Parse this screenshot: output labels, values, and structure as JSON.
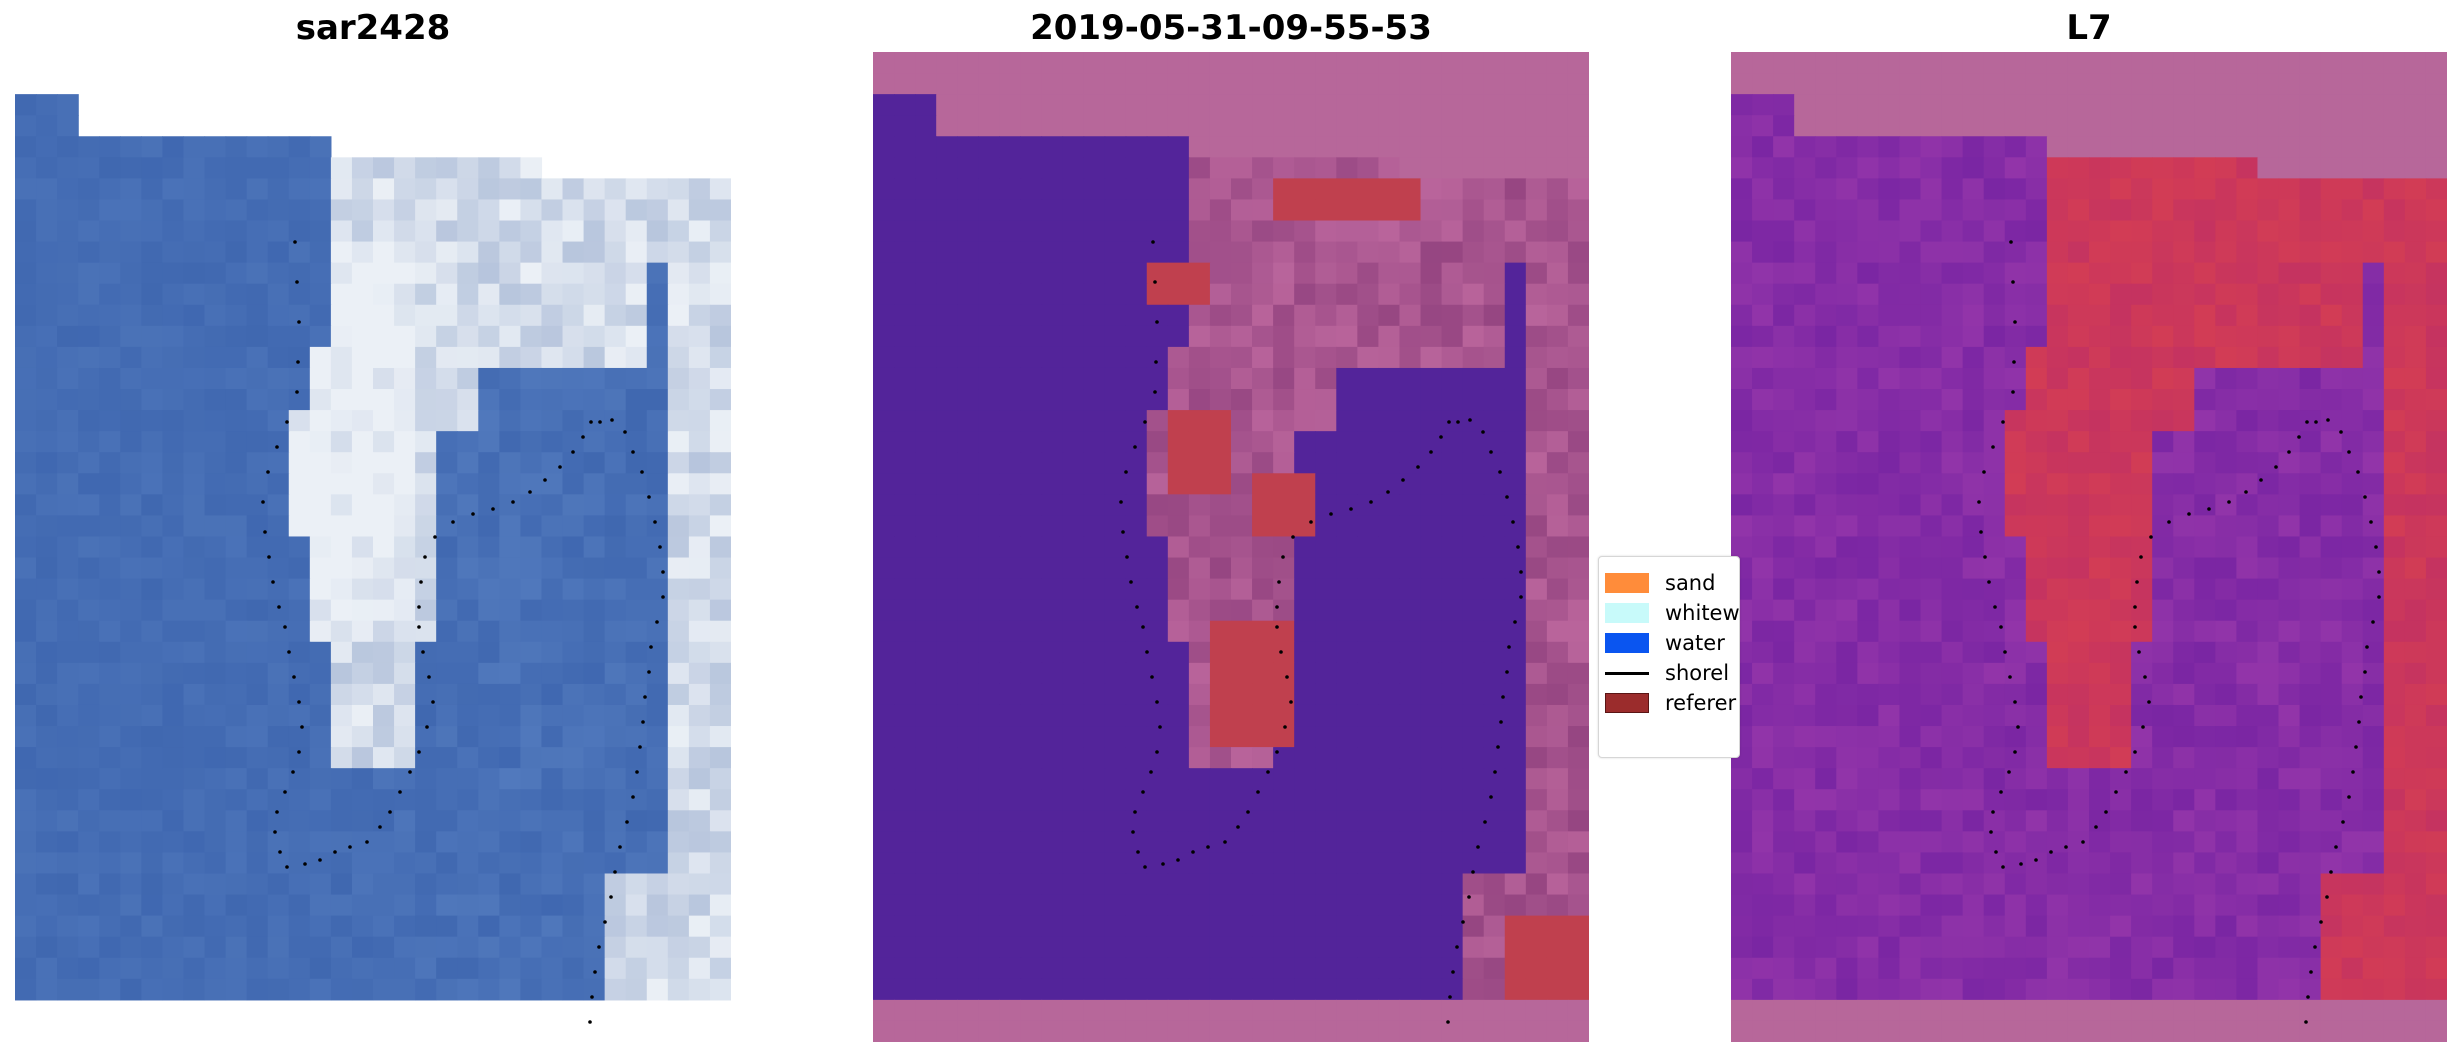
{
  "panels": [
    {
      "title": "sar2428"
    },
    {
      "title": "2019-05-31-09-55-53"
    },
    {
      "title": "L7"
    }
  ],
  "legend": {
    "items": [
      {
        "label": "sand",
        "color": "#ff8c3a",
        "kind": "patch"
      },
      {
        "label": "whitew",
        "color": "#c8fafa",
        "kind": "patch"
      },
      {
        "label": "water",
        "color": "#0a55f0",
        "kind": "patch"
      },
      {
        "label": "shorel",
        "color": "#000000",
        "kind": "line"
      },
      {
        "label": "referer",
        "color": "#9b2c2c",
        "kind": "patch"
      }
    ]
  },
  "colors": {
    "rgb_water": "#3d63ad",
    "rgb_whitewater": "#e6eef5",
    "class_water": "#53249a",
    "class_land": "#b7679a",
    "class_reference": "#c0404e",
    "index_low": "#7a25a8",
    "index_high": "#c8245a",
    "shoreline": "#000000"
  }
}
